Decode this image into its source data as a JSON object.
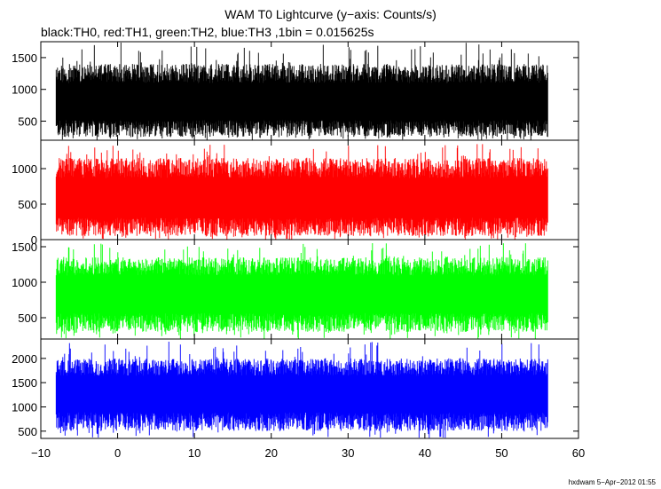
{
  "header": {
    "title": "WAM T0 Lightcurve (y−axis: Counts/s)",
    "subtitle": "black:TH0, red:TH1, green:TH2, blue:TH3 ,1bin = 0.015625s"
  },
  "footer": {
    "text": "hxdwam  5−Apr−2012 01:55"
  },
  "chart_data": {
    "type": "line",
    "title": "WAM T0 Lightcurve (y−axis: Counts/s)",
    "subtitle": "black:TH0, red:TH1, green:TH2, blue:TH3 ,1bin = 0.015625s",
    "xlabel": "",
    "ylabel": "Counts/s",
    "xlim": [
      -10,
      60
    ],
    "x_ticks": [
      -10,
      0,
      10,
      20,
      30,
      40,
      50,
      60
    ],
    "x_tick_labels": [
      "−10",
      "0",
      "10",
      "20",
      "30",
      "40",
      "50",
      "60"
    ],
    "x_range": [
      -8,
      56
    ],
    "bin_size": 0.015625,
    "grid": false,
    "series": [
      {
        "name": "TH0",
        "color": "#000000",
        "ylim": [
          200,
          1750
        ],
        "y_ticks": [
          500,
          1000,
          1500
        ],
        "y_tick_labels": [
          "500",
          "1000",
          "1500"
        ],
        "mean": 730,
        "typical_min": 250,
        "typical_max": 1400,
        "max": 1750
      },
      {
        "name": "TH1",
        "color": "#ff0000",
        "ylim": [
          0,
          1400
        ],
        "y_ticks": [
          0,
          500,
          1000
        ],
        "y_tick_labels": [
          "0",
          "500",
          "1000"
        ],
        "mean": 520,
        "typical_min": 50,
        "typical_max": 1150,
        "max": 1350
      },
      {
        "name": "TH2",
        "color": "#00ff00",
        "ylim": [
          200,
          1600
        ],
        "y_ticks": [
          500,
          1000,
          1500
        ],
        "y_tick_labels": [
          "500",
          "1000",
          "1500"
        ],
        "mean": 780,
        "typical_min": 300,
        "typical_max": 1350,
        "max": 1550
      },
      {
        "name": "TH3",
        "color": "#0000ff",
        "ylim": [
          350,
          2400
        ],
        "y_ticks": [
          500,
          1000,
          1500,
          2000
        ],
        "y_tick_labels": [
          "500",
          "1000",
          "1500",
          "2000"
        ],
        "mean": 1200,
        "typical_min": 500,
        "typical_max": 2000,
        "max": 2350
      }
    ]
  }
}
